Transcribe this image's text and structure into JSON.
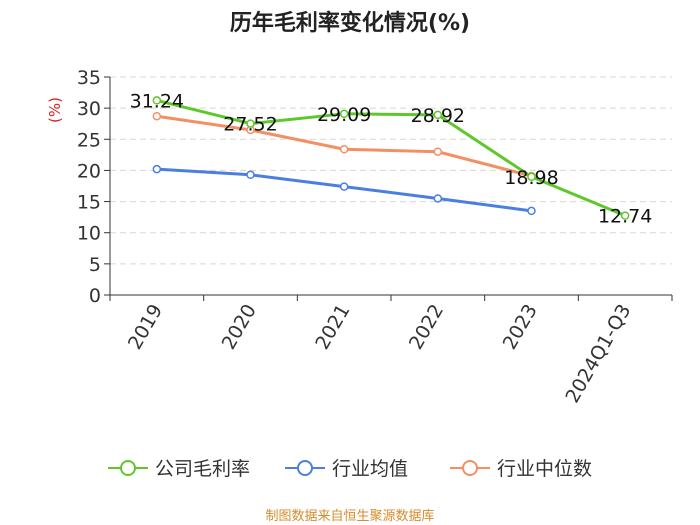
{
  "chart_data": {
    "type": "line",
    "title": "历年毛利率变化情况(%)",
    "ylabel": "(%)",
    "xlabel": "",
    "categories": [
      "2019",
      "2020",
      "2021",
      "2022",
      "2023",
      "2024Q1-Q3"
    ],
    "ylim": [
      0,
      35
    ],
    "yticks": [
      0,
      5,
      10,
      15,
      20,
      25,
      30,
      35
    ],
    "grid": true,
    "legend_position": "bottom",
    "series": [
      {
        "name": "公司毛利率",
        "color": "#5ec82a",
        "values": [
          31.24,
          27.52,
          29.09,
          28.92,
          18.98,
          12.74
        ],
        "labels": [
          "31.24",
          "27.52",
          "29.09",
          "28.92",
          "18.98",
          "12.74"
        ]
      },
      {
        "name": "行业均值",
        "color": "#4a7fe0",
        "values": [
          20.2,
          19.3,
          17.4,
          15.5,
          13.5,
          null
        ],
        "labels": []
      },
      {
        "name": "行业中位数",
        "color": "#f39063",
        "values": [
          28.7,
          26.5,
          23.4,
          23.0,
          19.1,
          null
        ],
        "labels": []
      }
    ]
  },
  "source": "制图数据来自恒生聚源数据库"
}
